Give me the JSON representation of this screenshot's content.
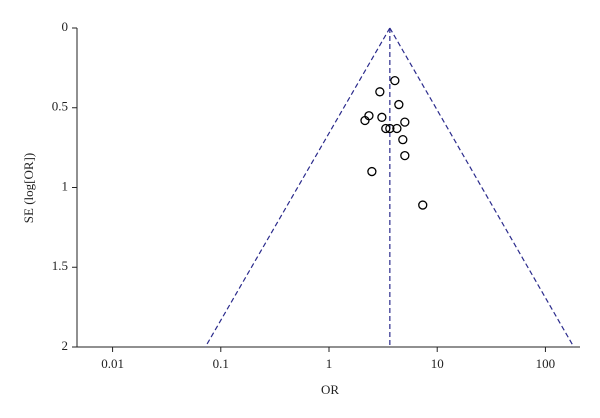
{
  "chart_data": {
    "type": "scatter",
    "xlabel": "OR",
    "ylabel": "SE (log[OR])",
    "x": [
      4.06,
      2.95,
      4.42,
      3.08,
      2.34,
      2.15,
      5.02,
      3.35,
      3.65,
      4.24,
      4.81,
      5.02,
      2.49,
      7.35
    ],
    "values": [
      0.33,
      0.4,
      0.48,
      0.56,
      0.55,
      0.58,
      0.59,
      0.63,
      0.63,
      0.63,
      0.7,
      0.8,
      0.9,
      1.11
    ],
    "color": "#000000",
    "xlog": true,
    "xlim": [
      0.005,
      200
    ],
    "xticks": [
      0.01,
      0.1,
      1,
      10,
      100
    ],
    "ylim": [
      0,
      2
    ],
    "yticks": [
      0,
      0.5,
      1,
      1.5,
      2
    ],
    "yinverted": true,
    "reference_lines": [
      {
        "x": [
          3.65,
          3.65
        ],
        "y": [
          0,
          2
        ]
      },
      {
        "x": [
          3.65,
          0.072
        ],
        "y": [
          0,
          2
        ]
      },
      {
        "x": [
          3.65,
          183
        ],
        "y": [
          0,
          2
        ]
      }
    ],
    "reference_color": "#2b2b8c"
  }
}
